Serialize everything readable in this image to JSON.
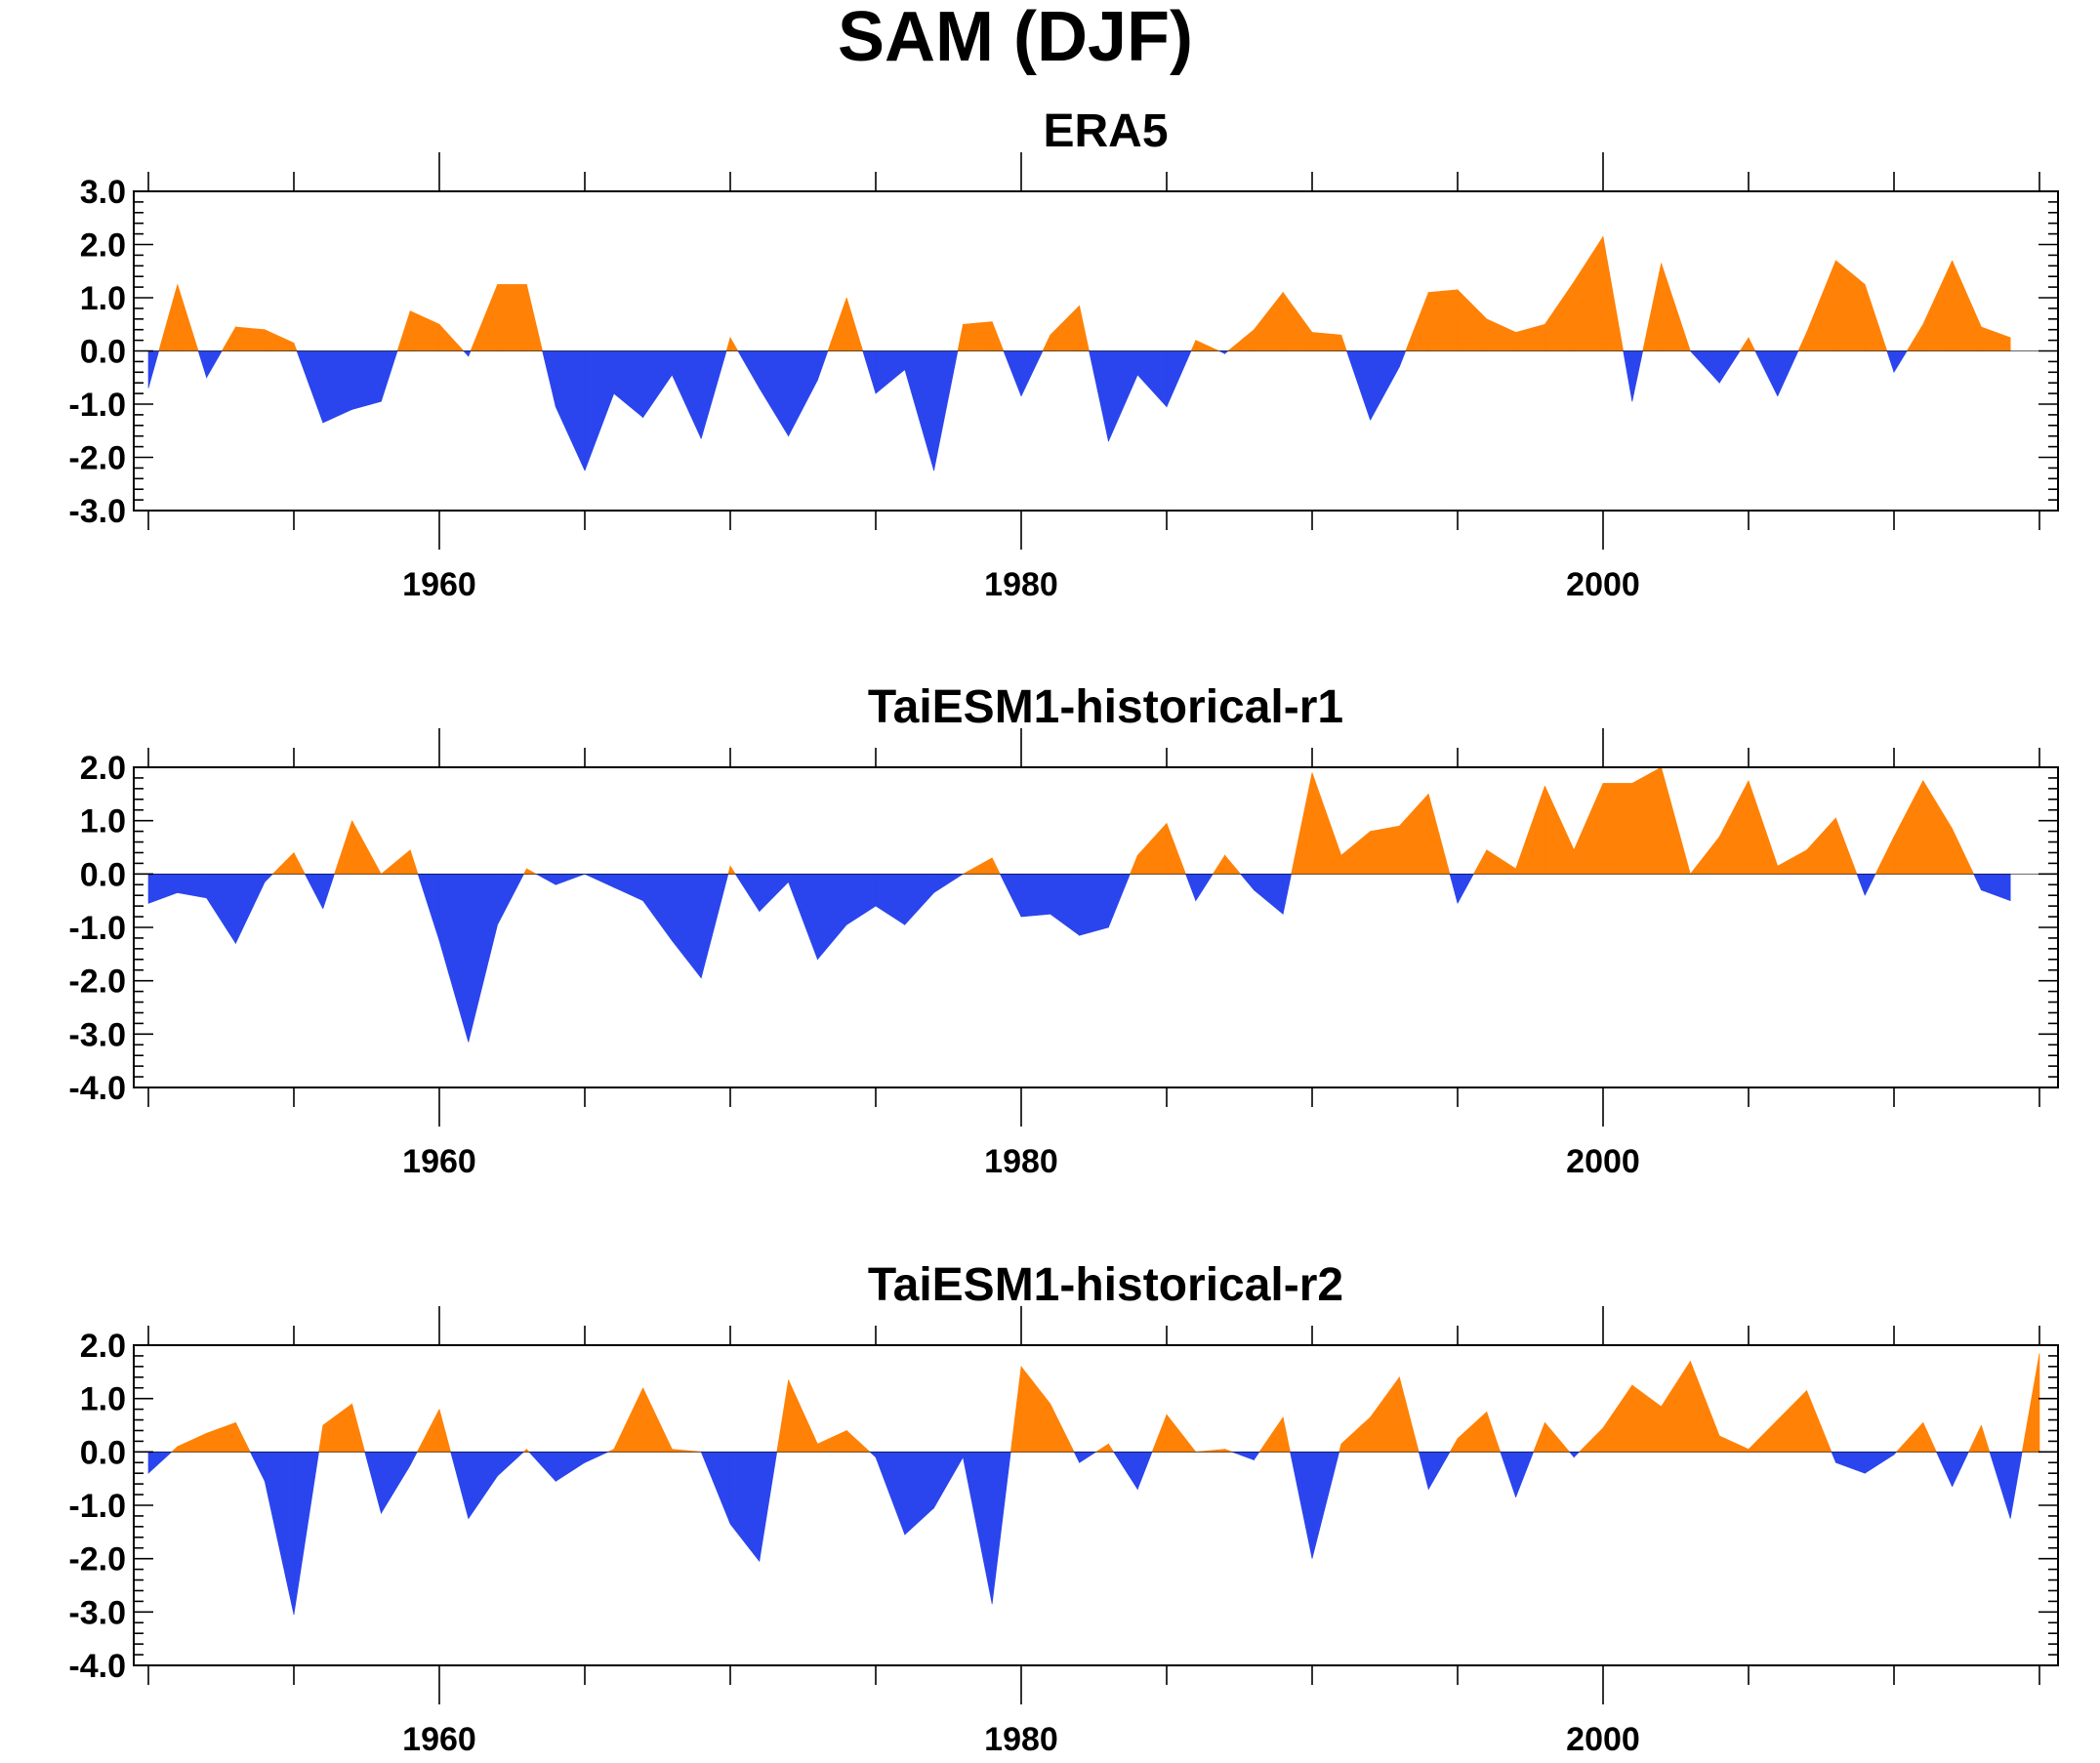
{
  "title": "SAM (DJF)",
  "colors": {
    "positive": "#FF8105",
    "negative": "#2A45ED"
  },
  "chart_data": [
    {
      "type": "area",
      "title": "ERA5",
      "xlabel": "",
      "ylabel": "",
      "x_start": 1950,
      "x_ticks": [
        1960,
        1980,
        2000
      ],
      "xlim": [
        1949.5,
        2015.6
      ],
      "ylim": [
        -3,
        3
      ],
      "y_ticks": [
        "3.0",
        "2.0",
        "1.0",
        "0.0",
        "-1.0",
        "-2.0",
        "-3.0"
      ],
      "values": [
        -0.7,
        1.25,
        -0.5,
        0.45,
        0.4,
        0.15,
        -1.35,
        -1.1,
        -0.95,
        0.75,
        0.5,
        -0.1,
        1.25,
        1.25,
        -1.05,
        -2.25,
        -0.8,
        -1.25,
        -0.45,
        -1.65,
        0.25,
        -0.7,
        -1.6,
        -0.55,
        1.0,
        -0.8,
        -0.35,
        -2.25,
        0.5,
        0.55,
        -0.85,
        0.3,
        0.85,
        -1.7,
        -0.45,
        -1.05,
        0.2,
        -0.05,
        0.4,
        1.1,
        0.35,
        0.3,
        -1.3,
        -0.3,
        1.1,
        1.15,
        0.6,
        0.35,
        0.5,
        1.3,
        2.15,
        -0.95,
        1.65,
        0.0,
        -0.6,
        0.25,
        -0.85,
        0.35,
        1.7,
        1.25,
        -0.4,
        0.5,
        1.7,
        0.45,
        0.25
      ]
    },
    {
      "type": "area",
      "title": "TaiESM1-historical-r1",
      "xlabel": "",
      "ylabel": "",
      "x_start": 1950,
      "x_ticks": [
        1960,
        1980,
        2000
      ],
      "xlim": [
        1949.5,
        2015.6
      ],
      "ylim": [
        -4,
        2
      ],
      "y_ticks": [
        "2.0",
        "1.0",
        "0.0",
        "-1.0",
        "-2.0",
        "-3.0",
        "-4.0"
      ],
      "values": [
        -0.55,
        -0.35,
        -0.45,
        -1.3,
        -0.15,
        0.4,
        -0.65,
        1.0,
        0.0,
        0.45,
        -1.25,
        -3.15,
        -0.95,
        0.1,
        -0.2,
        0.0,
        -0.25,
        -0.5,
        -1.25,
        -1.95,
        0.15,
        -0.7,
        -0.15,
        -1.6,
        -0.95,
        -0.6,
        -0.95,
        -0.35,
        0.0,
        0.3,
        -0.8,
        -0.75,
        -1.15,
        -1.0,
        0.35,
        0.95,
        -0.5,
        0.35,
        -0.3,
        -0.75,
        1.9,
        0.35,
        0.8,
        0.9,
        1.5,
        -0.55,
        0.45,
        0.1,
        1.65,
        0.45,
        1.7,
        1.7,
        2.0,
        0.0,
        0.7,
        1.75,
        0.15,
        0.45,
        1.05,
        -0.4,
        0.7,
        1.75,
        0.85,
        -0.3,
        -0.5
      ]
    },
    {
      "type": "area",
      "title": "TaiESM1-historical-r2",
      "xlabel": "",
      "ylabel": "",
      "x_start": 1950,
      "x_ticks": [
        1960,
        1980,
        2000
      ],
      "xlim": [
        1949.5,
        2015.6
      ],
      "ylim": [
        -4,
        2
      ],
      "y_ticks": [
        "2.0",
        "1.0",
        "0.0",
        "-1.0",
        "-2.0",
        "-3.0",
        "-4.0"
      ],
      "values": [
        -0.4,
        0.1,
        0.35,
        0.55,
        -0.55,
        -3.05,
        0.5,
        0.9,
        -1.15,
        -0.25,
        0.8,
        -1.25,
        -0.45,
        0.05,
        -0.55,
        -0.2,
        0.05,
        1.2,
        0.05,
        0.0,
        -1.35,
        -2.05,
        1.35,
        0.15,
        0.4,
        -0.1,
        -1.55,
        -1.05,
        -0.1,
        -2.85,
        1.6,
        0.9,
        -0.2,
        0.15,
        -0.7,
        0.7,
        0.0,
        0.05,
        -0.15,
        0.65,
        -2.0,
        0.15,
        0.65,
        1.4,
        -0.7,
        0.25,
        0.75,
        -0.85,
        0.55,
        -0.1,
        0.45,
        1.25,
        0.85,
        1.7,
        0.3,
        0.05,
        0.6,
        1.15,
        -0.2,
        -0.4,
        -0.05,
        0.55,
        -0.65,
        0.5,
        -1.25,
        1.85
      ]
    }
  ]
}
